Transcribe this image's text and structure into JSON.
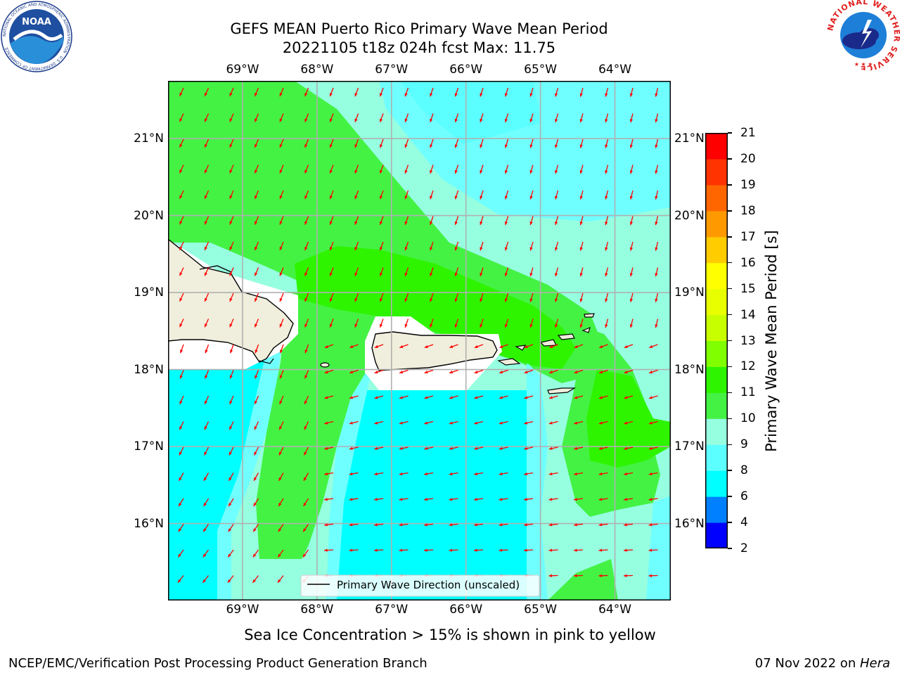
{
  "header": {
    "title_line1": "GEFS MEAN Puerto Rico Primary Wave Mean Period",
    "title_line2": "20221105 t18z 024h fcst   Max: 11.75"
  },
  "chart_data": {
    "type": "heatmap",
    "map": {
      "lon_labels": [
        "69°W",
        "68°W",
        "67°W",
        "66°W",
        "65°W",
        "64°W"
      ],
      "lat_labels": [
        "21°N",
        "20°N",
        "19°N",
        "18°N",
        "17°N",
        "16°N"
      ],
      "lon_range": [
        -70.0,
        -63.25
      ],
      "lat_range": [
        15.0,
        21.75
      ],
      "grid": true
    },
    "colorbar": {
      "label": "Primary Wave Mean Period [s]",
      "ticks": [
        "21",
        "20",
        "19",
        "18",
        "17",
        "16",
        "15",
        "14",
        "13",
        "12",
        "11",
        "10",
        "9",
        "8",
        "6",
        "4",
        "2"
      ],
      "bands": [
        {
          "from": 2,
          "to": 4,
          "color": "#0000ff"
        },
        {
          "from": 4,
          "to": 6,
          "color": "#0080ff"
        },
        {
          "from": 6,
          "to": 8,
          "color": "#00ffff"
        },
        {
          "from": 8,
          "to": 9,
          "color": "#5cffff"
        },
        {
          "from": 9,
          "to": 10,
          "color": "#96ffe0"
        },
        {
          "from": 10,
          "to": 11,
          "color": "#44f244"
        },
        {
          "from": 11,
          "to": 12,
          "color": "#2ef400"
        },
        {
          "from": 12,
          "to": 13,
          "color": "#80ff00"
        },
        {
          "from": 13,
          "to": 14,
          "color": "#c8ff00"
        },
        {
          "from": 14,
          "to": 15,
          "color": "#e8ff00"
        },
        {
          "from": 15,
          "to": 16,
          "color": "#ffff00"
        },
        {
          "from": 16,
          "to": 17,
          "color": "#ffcc00"
        },
        {
          "from": 17,
          "to": 18,
          "color": "#ff9900"
        },
        {
          "from": 18,
          "to": 19,
          "color": "#ff6600"
        },
        {
          "from": 19,
          "to": 20,
          "color": "#ff3300"
        },
        {
          "from": 20,
          "to": 21,
          "color": "#ff0000"
        }
      ]
    },
    "max_value": 11.75,
    "legend": {
      "entry": "Primary Wave Direction (unscaled)",
      "placement": "lower-center"
    },
    "arrow_color": "#ff0000",
    "land_color": "#f0eedc"
  },
  "note": "Sea Ice Concentration > 15% is shown in pink to yellow",
  "footer": {
    "left": "NCEP/EMC/Verification Post Processing Product Generation Branch",
    "right_prefix": "07 Nov 2022 on ",
    "right_host": "Hera"
  },
  "logos": {
    "noaa": {
      "text": "NOAA",
      "ring_text": "NATIONAL OCEANIC AND ATMOSPHERIC ADMINISTRATION · U.S. DEPARTMENT OF COMMERCE"
    },
    "nws": {
      "ring_text": "NATIONAL WEATHER SERVICE"
    }
  }
}
